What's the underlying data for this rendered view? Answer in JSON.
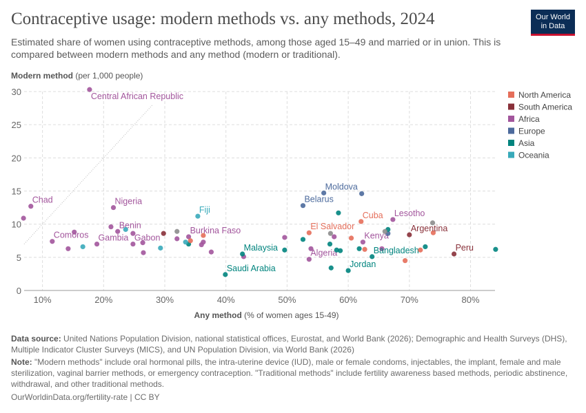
{
  "title": "Contraceptive usage: modern methods vs. any methods, 2024",
  "subtitle": "Estimated share of women using contraceptive methods, among those aged 15–49 and married or in union. This is compared between modern methods and any method (modern or traditional).",
  "logo": "Our World in Data",
  "footer": {
    "source_label": "Data source:",
    "source": "United Nations Population Division, national statistical offices, Eurostat, and World Bank (2026); Demographic and Health Surveys (DHS), Multiple Indicator Cluster Surveys (MICS), and UN Population Division, via World Bank (2026)",
    "note_label": "Note:",
    "note": "\"Modern methods\" include oral hormonal pills, the intra-uterine device (IUD), male or female condoms, injectables, the implant, female and male sterilization, vaginal barrier methods, or emergency contraception. \"Traditional methods\" include fertility awareness based methods, periodic abstinence, withdrawal, and other traditional methods.",
    "url": "OurWorldinData.org/fertility-rate | CC BY"
  },
  "chart_data": {
    "type": "scatter",
    "ylabel_bold": "Modern method",
    "ylabel_rest": " (per 1,000 people)",
    "xlabel_bold": "Any method",
    "xlabel_rest": " (% of women ages 15-49)",
    "xlim": [
      7,
      84
    ],
    "ylim": [
      0,
      30
    ],
    "xticks": [
      10,
      20,
      30,
      40,
      50,
      60,
      70,
      80
    ],
    "xtick_labels": [
      "10%",
      "20%",
      "30%",
      "40%",
      "50%",
      "60%",
      "70%",
      "80%"
    ],
    "yticks": [
      0,
      5,
      10,
      15,
      20,
      25,
      30
    ],
    "grid": true,
    "legend_position": "top-right",
    "diagonal_reference_line": [
      [
        7,
        7
      ],
      [
        28,
        28
      ]
    ],
    "regions": [
      {
        "name": "North America",
        "color": "#e56e5a"
      },
      {
        "name": "South America",
        "color": "#883039"
      },
      {
        "name": "Africa",
        "color": "#a2559c"
      },
      {
        "name": "Europe",
        "color": "#4c6a9c"
      },
      {
        "name": "Asia",
        "color": "#00847e"
      },
      {
        "name": "Oceania",
        "color": "#38aaba"
      }
    ],
    "unassigned_color": "#8c8c8c",
    "points": [
      {
        "x": 17.7,
        "y": 30.3,
        "r": "Africa",
        "label": "Central African Republic"
      },
      {
        "x": 8.1,
        "y": 12.7,
        "r": "Africa",
        "label": "Chad"
      },
      {
        "x": 6.9,
        "y": 10.9,
        "r": "Africa"
      },
      {
        "x": 21.6,
        "y": 12.5,
        "r": "Africa",
        "label": "Nigeria"
      },
      {
        "x": 21.2,
        "y": 9.6,
        "r": "Africa"
      },
      {
        "x": 22.3,
        "y": 8.9,
        "r": "Africa",
        "label": "Benin"
      },
      {
        "x": 15.2,
        "y": 8.8,
        "r": "Africa"
      },
      {
        "x": 11.6,
        "y": 7.4,
        "r": "Africa",
        "label": "Comoros"
      },
      {
        "x": 14.2,
        "y": 6.3,
        "r": "Africa"
      },
      {
        "x": 18.9,
        "y": 7.0,
        "r": "Africa",
        "label": "Gambia"
      },
      {
        "x": 24.8,
        "y": 8.6,
        "r": "Africa"
      },
      {
        "x": 24.8,
        "y": 7.0,
        "r": "Africa",
        "label": "Gabon"
      },
      {
        "x": 26.4,
        "y": 7.2,
        "r": "Africa"
      },
      {
        "x": 26.5,
        "y": 5.7,
        "r": "Africa"
      },
      {
        "x": 32.0,
        "y": 7.8,
        "r": "Africa"
      },
      {
        "x": 33.9,
        "y": 8.1,
        "r": "Africa",
        "label": "Burkina Faso"
      },
      {
        "x": 36.0,
        "y": 6.9,
        "r": "Africa"
      },
      {
        "x": 36.3,
        "y": 7.3,
        "r": "Africa"
      },
      {
        "x": 37.6,
        "y": 5.8,
        "r": "Africa"
      },
      {
        "x": 42.9,
        "y": 5.1,
        "r": "Africa"
      },
      {
        "x": 49.6,
        "y": 8.0,
        "r": "Africa"
      },
      {
        "x": 53.6,
        "y": 4.7,
        "r": "Africa",
        "label": "Algeria"
      },
      {
        "x": 53.9,
        "y": 6.3,
        "r": "Africa"
      },
      {
        "x": 62.4,
        "y": 7.3,
        "r": "Africa",
        "label": "Kenya"
      },
      {
        "x": 57.7,
        "y": 8.1,
        "r": "Africa"
      },
      {
        "x": 67.3,
        "y": 10.7,
        "r": "Africa",
        "label": "Lesotho"
      },
      {
        "x": 65.5,
        "y": 6.3,
        "r": "Africa"
      },
      {
        "x": 56.0,
        "y": 14.7,
        "r": "Europe",
        "label": "Moldova"
      },
      {
        "x": 62.2,
        "y": 14.6,
        "r": "Europe"
      },
      {
        "x": 52.6,
        "y": 12.8,
        "r": "Europe",
        "label": "Belarus"
      },
      {
        "x": 66.5,
        "y": 8.6,
        "r": "Europe"
      },
      {
        "x": 39.9,
        "y": 2.4,
        "r": "Asia",
        "label": "Saudi Arabia"
      },
      {
        "x": 42.7,
        "y": 5.5,
        "r": "Asia",
        "label": "Malaysia"
      },
      {
        "x": 49.6,
        "y": 6.1,
        "r": "Asia"
      },
      {
        "x": 58.4,
        "y": 11.7,
        "r": "Asia"
      },
      {
        "x": 52.6,
        "y": 7.7,
        "r": "Asia"
      },
      {
        "x": 57.0,
        "y": 7.0,
        "r": "Asia"
      },
      {
        "x": 58.1,
        "y": 6.1,
        "r": "Asia"
      },
      {
        "x": 58.7,
        "y": 6.0,
        "r": "Asia"
      },
      {
        "x": 61.8,
        "y": 6.3,
        "r": "Asia"
      },
      {
        "x": 60.0,
        "y": 3.0,
        "r": "Asia",
        "label": "Jordan"
      },
      {
        "x": 57.2,
        "y": 3.4,
        "r": "Asia"
      },
      {
        "x": 63.9,
        "y": 5.1,
        "r": "Asia",
        "label": "Bangladesh"
      },
      {
        "x": 66.5,
        "y": 9.2,
        "r": "Asia"
      },
      {
        "x": 72.6,
        "y": 6.6,
        "r": "Asia"
      },
      {
        "x": 84.1,
        "y": 6.2,
        "r": "Asia"
      },
      {
        "x": 33.9,
        "y": 7.0,
        "r": "Asia"
      },
      {
        "x": 35.4,
        "y": 11.2,
        "r": "Oceania",
        "label": "Fiji"
      },
      {
        "x": 16.6,
        "y": 6.6,
        "r": "Oceania"
      },
      {
        "x": 23.6,
        "y": 9.2,
        "r": "Oceania"
      },
      {
        "x": 29.3,
        "y": 6.4,
        "r": "Oceania"
      },
      {
        "x": 33.4,
        "y": 7.3,
        "r": "Oceania"
      },
      {
        "x": 62.1,
        "y": 10.4,
        "r": "North America",
        "label": "Cuba"
      },
      {
        "x": 53.6,
        "y": 8.7,
        "r": "North America",
        "label": "El Salvador"
      },
      {
        "x": 60.5,
        "y": 7.9,
        "r": "North America"
      },
      {
        "x": 62.7,
        "y": 6.2,
        "r": "North America"
      },
      {
        "x": 71.8,
        "y": 6.1,
        "r": "North America"
      },
      {
        "x": 69.3,
        "y": 4.5,
        "r": "North America"
      },
      {
        "x": 34.2,
        "y": 7.5,
        "r": "North America"
      },
      {
        "x": 36.3,
        "y": 8.3,
        "r": "North America"
      },
      {
        "x": 73.9,
        "y": 8.7,
        "r": "North America"
      },
      {
        "x": 70.0,
        "y": 8.4,
        "r": "South America",
        "label": "Argentina"
      },
      {
        "x": 77.3,
        "y": 5.5,
        "r": "South America",
        "label": "Peru"
      },
      {
        "x": 29.8,
        "y": 8.6,
        "r": "South America"
      },
      {
        "x": 32.0,
        "y": 8.9,
        "r": null
      },
      {
        "x": 57.1,
        "y": 8.6,
        "r": null
      },
      {
        "x": 66.0,
        "y": 8.9,
        "r": null
      },
      {
        "x": 73.8,
        "y": 10.2,
        "r": null
      }
    ]
  }
}
